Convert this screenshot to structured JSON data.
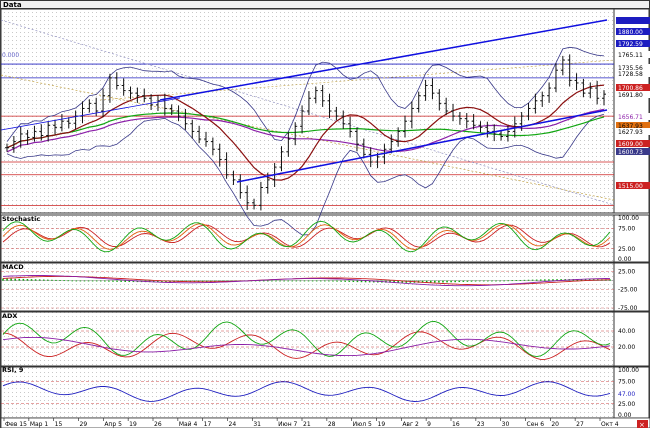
{
  "chart_data": [
    {
      "type": "line",
      "title": "Data",
      "subtitle": "0.000",
      "series": [],
      "close": [
        1628,
        1640,
        1655,
        1648,
        1660,
        1652,
        1672,
        1668,
        1680,
        1676,
        1690,
        1705,
        1715,
        1700,
        1730,
        1765,
        1750,
        1740,
        1735,
        1730,
        1725,
        1712,
        1720,
        1705,
        1700,
        1690,
        1675,
        1660,
        1645,
        1640,
        1625,
        1605,
        1575,
        1565,
        1540,
        1520,
        1515,
        1550,
        1565,
        1590,
        1620,
        1645,
        1670,
        1700,
        1725,
        1740,
        1720,
        1700,
        1690,
        1675,
        1660,
        1635,
        1615,
        1600,
        1610,
        1625,
        1640,
        1660,
        1680,
        1705,
        1730,
        1750,
        1735,
        1715,
        1700,
        1690,
        1685,
        1680,
        1672,
        1668,
        1660,
        1655,
        1650,
        1660,
        1675,
        1690,
        1705,
        1720,
        1730,
        1745,
        1780,
        1800,
        1760,
        1755,
        1735,
        1745,
        1725,
        1733
      ],
      "price_labels": [
        "1880.00",
        "1792.59",
        "1765.11",
        "1735.56",
        "1728.58",
        "1700.86",
        "1691.80",
        "1656.71",
        "1637.93",
        "1627.93",
        "1609.00",
        "1600.73",
        "1515.00"
      ],
      "x_labels": [
        "Фев 15",
        "Мар 1",
        "15",
        "29",
        "Апр 5",
        "19",
        "26",
        "Май 4",
        "17",
        "24",
        "31",
        "Июн 7",
        "21",
        "28",
        "Июл 5",
        "19",
        "Авг 2",
        "9",
        "16",
        "23",
        "30",
        "Сен 6",
        "20",
        "27",
        "Окт 4"
      ],
      "ylim": [
        1500,
        1900
      ],
      "grid": true
    },
    {
      "type": "line",
      "title": "Stochastic",
      "series": [],
      "y_labels": [
        "100.00",
        "75.00",
        "25.00",
        "0.00"
      ],
      "ylim": [
        0,
        100
      ]
    },
    {
      "type": "bar",
      "title": "MACD",
      "series": [],
      "y_labels": [
        "25.00",
        "-25.00",
        "-75.00"
      ],
      "ylim": [
        -75,
        40
      ]
    },
    {
      "type": "line",
      "title": "ADX",
      "series": [],
      "y_labels": [
        "40.00",
        "20.00"
      ],
      "ylim": [
        0,
        60
      ]
    },
    {
      "type": "line",
      "title": "RSI, 9",
      "series": [],
      "y_labels": [
        "100.00",
        "75.00",
        "47.00",
        "25.00",
        "0.00"
      ],
      "ylim": [
        0,
        100
      ]
    }
  ],
  "colors": {
    "bb_band": "#3a3a8a",
    "channel": "#1010e0",
    "ma_fast": "#8b1010",
    "ma_mid": "#8b1fa8",
    "ma_slow": "#11a611",
    "hline_red": "#cc2222",
    "hline_blue": "#2020c0",
    "badge_blue": "#1c1cc0",
    "stoch_k": "#11a611",
    "stoch_d": "#e06010",
    "stoch_3": "#cc2222",
    "macd_line": "#8b1fa8",
    "macd_signal": "#cc2222",
    "macd_hist": "#11a611",
    "adx": "#8b1fa8",
    "di_plus": "#11a611",
    "di_minus": "#cc2222",
    "rsi": "#2020c0"
  },
  "icons": {
    "close_button": "close-icon"
  }
}
